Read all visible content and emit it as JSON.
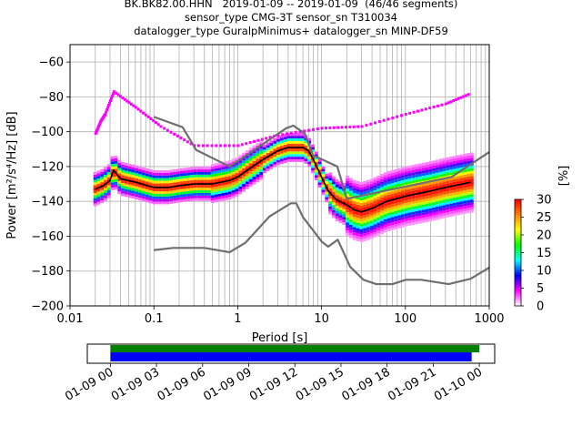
{
  "title": {
    "line1": "BK.BK82.00.HHN   2019-01-09 -- 2019-01-09  (46/46 segments)",
    "line2": "sensor_type CMG-3T sensor_sn T310034",
    "line3": "datalogger_type GuralpMinimus+ datalogger_sn MINP-DF59"
  },
  "chart_data": [
    {
      "type": "heatmap",
      "xlabel": "Period [s]",
      "ylabel": "Power [m²/s⁴/Hz] [dB]",
      "xscale": "log",
      "xlim": [
        0.01,
        1000
      ],
      "ylim": [
        -200,
        -50
      ],
      "xticks": [
        0.01,
        0.1,
        1,
        10,
        100,
        1000
      ],
      "xtick_labels": [
        "0.01",
        "0.1",
        "1",
        "10",
        "100",
        "1000"
      ],
      "yticks": [
        -200,
        -180,
        -160,
        -140,
        -120,
        -100,
        -80,
        -60
      ],
      "ytick_labels": [
        "−200",
        "−180",
        "−160",
        "−140",
        "−120",
        "−100",
        "−80",
        "−60"
      ],
      "grid": true,
      "colorbar": {
        "label": "[%]",
        "range": [
          0,
          30
        ],
        "ticks": [
          0,
          5,
          10,
          15,
          20,
          25,
          30
        ],
        "tick_labels": [
          "0",
          "5",
          "10",
          "15",
          "20",
          "25",
          "30"
        ],
        "colormap_stops": [
          "#ffffff",
          "#ff00ff",
          "#0000ff",
          "#00ffff",
          "#00ff00",
          "#ffff00",
          "#ff8000",
          "#ff0000"
        ]
      },
      "series": [
        {
          "kind": "mode",
          "color": "#000000",
          "points": [
            [
              0.02,
              -133
            ],
            [
              0.025,
              -131
            ],
            [
              0.03,
              -128
            ],
            [
              0.033,
              -122
            ],
            [
              0.04,
              -127
            ],
            [
              0.06,
              -129
            ],
            [
              0.1,
              -132
            ],
            [
              0.15,
              -132
            ],
            [
              0.2,
              -131
            ],
            [
              0.3,
              -130
            ],
            [
              0.5,
              -130
            ],
            [
              0.8,
              -128
            ],
            [
              1,
              -126
            ],
            [
              1.5,
              -120
            ],
            [
              2,
              -116
            ],
            [
              3,
              -111
            ],
            [
              4,
              -109
            ],
            [
              5,
              -109
            ],
            [
              6,
              -109
            ],
            [
              7,
              -111
            ],
            [
              8,
              -116
            ],
            [
              10,
              -126
            ],
            [
              12,
              -134
            ],
            [
              15,
              -139
            ],
            [
              20,
              -142
            ],
            [
              25,
              -145
            ],
            [
              30,
              -146
            ],
            [
              40,
              -144
            ],
            [
              60,
              -140
            ],
            [
              100,
              -137
            ],
            [
              200,
              -134
            ],
            [
              300,
              -132
            ],
            [
              600,
              -129
            ]
          ]
        },
        {
          "kind": "new-high-noise-model",
          "color": "#6e6e6e",
          "points": [
            [
              0.1,
              -91.5
            ],
            [
              0.22,
              -97.4
            ],
            [
              0.32,
              -110.5
            ],
            [
              0.8,
              -120
            ],
            [
              3.8,
              -98
            ],
            [
              4.6,
              -96.5
            ],
            [
              6.3,
              -101
            ],
            [
              7.9,
              -113.5
            ],
            [
              15.4,
              -120
            ],
            [
              20,
              -138.5
            ],
            [
              354.8,
              -126
            ],
            [
              10000,
              -80
            ]
          ]
        },
        {
          "kind": "new-low-noise-model",
          "color": "#6e6e6e",
          "points": [
            [
              0.1,
              -168
            ],
            [
              0.17,
              -166.7
            ],
            [
              0.4,
              -166.7
            ],
            [
              0.8,
              -169.2
            ],
            [
              1.24,
              -163.7
            ],
            [
              2.4,
              -148.6
            ],
            [
              4.3,
              -141.1
            ],
            [
              5,
              -141.1
            ],
            [
              6,
              -149
            ],
            [
              10,
              -163
            ],
            [
              12,
              -166
            ],
            [
              15.6,
              -162
            ],
            [
              21.9,
              -177.5
            ],
            [
              31.6,
              -185
            ],
            [
              45,
              -187.5
            ],
            [
              70,
              -187.5
            ],
            [
              101,
              -185
            ],
            [
              154,
              -185
            ],
            [
              328,
              -187.5
            ],
            [
              600,
              -184.4
            ],
            [
              1000,
              -178
            ]
          ]
        }
      ]
    },
    {
      "type": "bar",
      "orientation": "horizontal",
      "xlabel": "",
      "x_tick_labels": [
        "01-09 00",
        "01-09 03",
        "01-09 06",
        "01-09 09",
        "01-09 12",
        "01-09 15",
        "01-09 18",
        "01-09 21",
        "01-10 00"
      ],
      "xlim_hours": [
        -1.5,
        25.0
      ],
      "series": [
        {
          "kind": "data-available",
          "color": "#008000",
          "start_hour": 0,
          "end_hour": 24.0
        },
        {
          "kind": "psd-segments",
          "color": "#0000ff",
          "start_hour": 0,
          "end_hour": 23.5
        }
      ]
    }
  ]
}
